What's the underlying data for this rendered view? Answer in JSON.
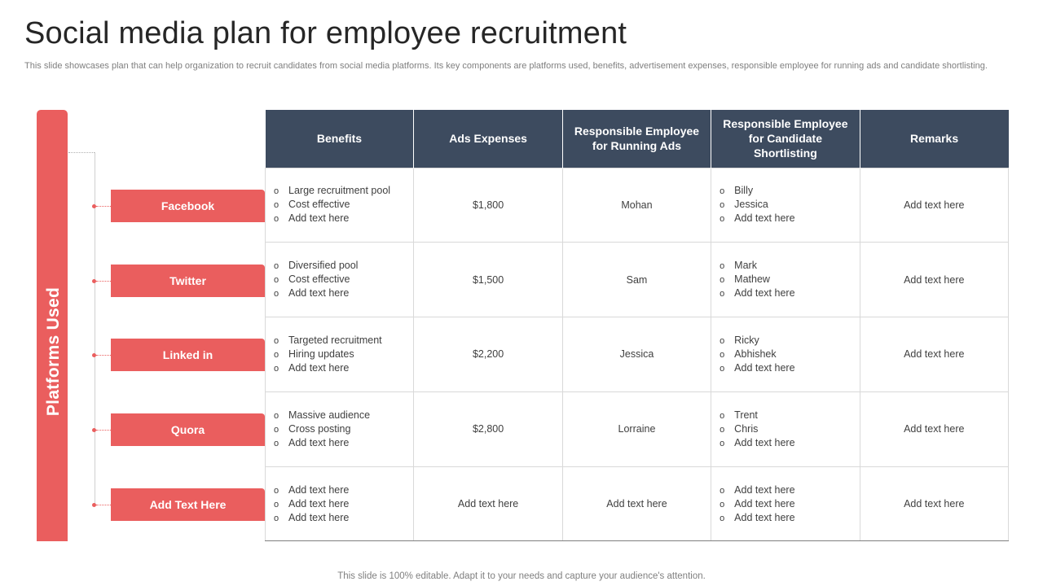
{
  "title": "Social media plan for employee recruitment",
  "subtitle": "This slide showcases plan that can help organization to recruit candidates from social media platforms. Its key components are platforms used, benefits, advertisement expenses, responsible employee for running ads and candidate shortlisting.",
  "side_label": "Platforms Used",
  "bullet_glyph": "o",
  "headers": [
    "Benefits",
    "Ads Expenses",
    "Responsible Employee for Running Ads",
    "Responsible Employee for Candidate Shortlisting",
    "Remarks"
  ],
  "rows": [
    {
      "platform": "Facebook",
      "benefits": [
        "Large recruitment  pool",
        "Cost effective",
        "Add text here"
      ],
      "ads_expenses": "$1,800",
      "ads_employee": "Mohan",
      "shortlisting": [
        "Billy",
        "Jessica",
        "Add text here"
      ],
      "remarks": "Add text here"
    },
    {
      "platform": "Twitter",
      "benefits": [
        "Diversified  pool",
        "Cost effective",
        "Add text here"
      ],
      "ads_expenses": "$1,500",
      "ads_employee": "Sam",
      "shortlisting": [
        "Mark",
        "Mathew",
        "Add text here"
      ],
      "remarks": "Add text here"
    },
    {
      "platform": "Linked in",
      "benefits": [
        "Targeted  recruitment",
        "Hiring updates",
        "Add text here"
      ],
      "ads_expenses": "$2,200",
      "ads_employee": "Jessica",
      "shortlisting": [
        "Ricky",
        "Abhishek",
        "Add text here"
      ],
      "remarks": "Add text here"
    },
    {
      "platform": "Quora",
      "benefits": [
        "Massive audience",
        "Cross posting",
        "Add text here"
      ],
      "ads_expenses": "$2,800",
      "ads_employee": "Lorraine",
      "shortlisting": [
        "Trent",
        "Chris",
        "Add text here"
      ],
      "remarks": "Add text here"
    },
    {
      "platform": "Add  Text Here",
      "benefits": [
        "Add text here",
        "Add text here",
        "Add text here"
      ],
      "ads_expenses": "Add text here",
      "ads_employee": "Add text here",
      "shortlisting": [
        "Add text here",
        "Add text here",
        "Add text here"
      ],
      "remarks": "Add text here"
    }
  ],
  "footer": "This slide is 100% editable. Adapt it to your needs and capture your audience's attention.",
  "colors": {
    "accent": "#ea5e5e",
    "header_bg": "#3d4b5f",
    "title": "#262626",
    "muted": "#7f7f7f"
  }
}
